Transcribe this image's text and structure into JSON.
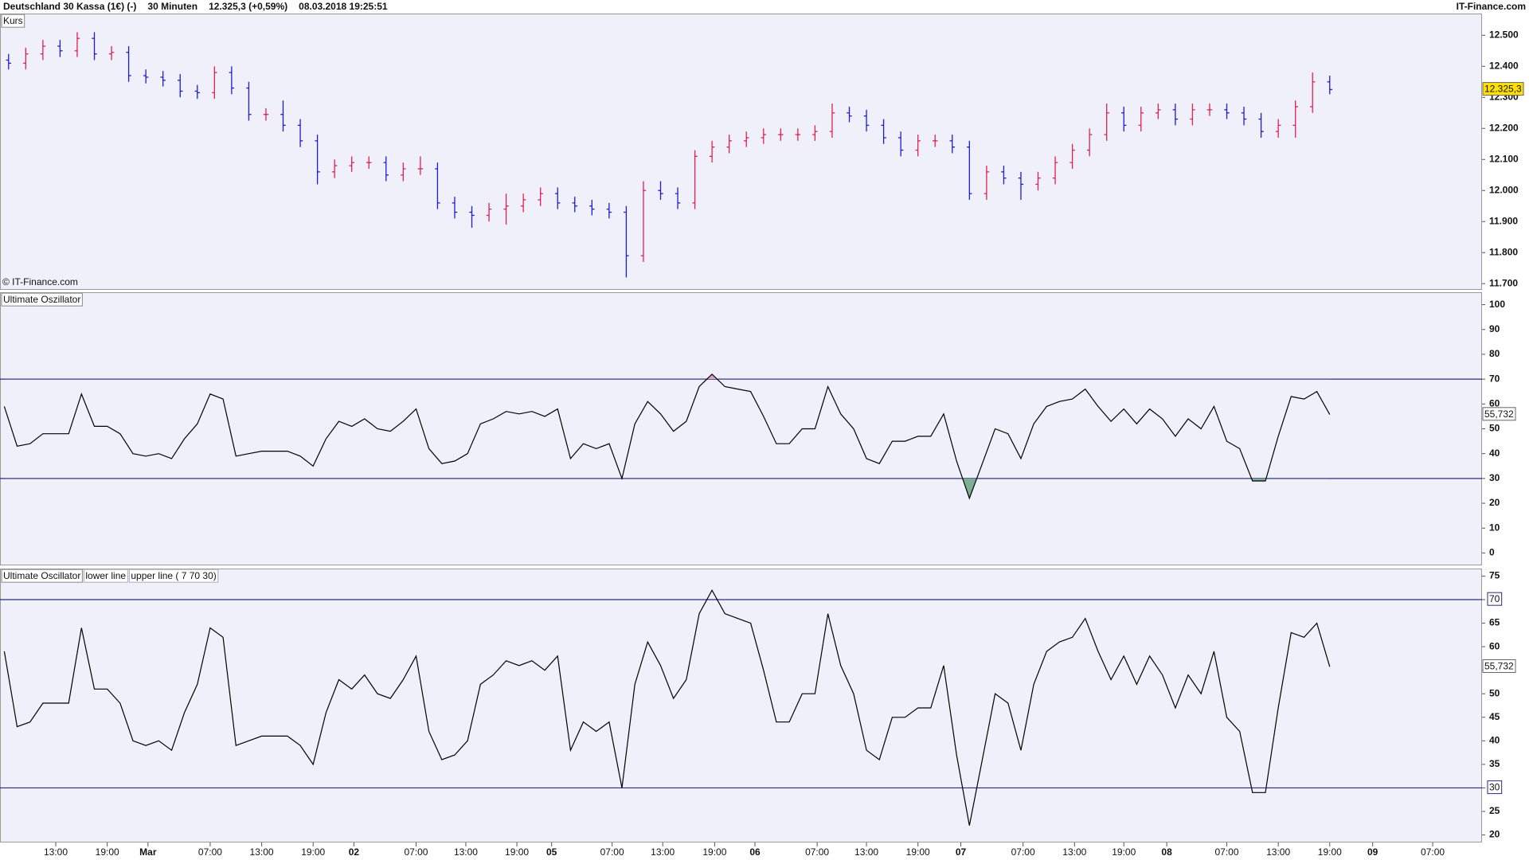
{
  "header": {
    "title": "Deutschland 30 Kassa (1€) (-)",
    "interval": "30 Minuten",
    "quote": "12.325,3 (+0,59%)",
    "timestamp": "08.03.2018 19:25:51",
    "brand": "IT-Finance.com"
  },
  "chart_data": [
    {
      "type": "ohlc",
      "title": "Kurs",
      "watermark": "© IT-Finance.com",
      "up_color": "#e0204f",
      "down_color": "#1c1cd0",
      "x": [
        2,
        6,
        10,
        14,
        18,
        22,
        26,
        30,
        34,
        38,
        42,
        46,
        50,
        54,
        58,
        62,
        66,
        70,
        74,
        78,
        82,
        86,
        90,
        94,
        98,
        102,
        106,
        110,
        114,
        118,
        122,
        126,
        130,
        134,
        138,
        142,
        146,
        150,
        154,
        158,
        162,
        166,
        170,
        174,
        178,
        182,
        186,
        190,
        194,
        198,
        202,
        206,
        210,
        214,
        218,
        222,
        226,
        230,
        234,
        238,
        242,
        246,
        250,
        254,
        258,
        262,
        266,
        270,
        274,
        278,
        282,
        286,
        290,
        294,
        298,
        302,
        306,
        310
      ],
      "open": [
        12420,
        12410,
        12440,
        12465,
        12450,
        12490,
        12440,
        12445,
        12370,
        12365,
        12355,
        12320,
        12315,
        12380,
        12330,
        12245,
        12245,
        12210,
        12160,
        12060,
        12080,
        12090,
        12090,
        12050,
        12070,
        12070,
        11960,
        11930,
        11920,
        11940,
        11950,
        11970,
        11990,
        11960,
        11950,
        11940,
        11930,
        11790,
        12000,
        11990,
        11960,
        12110,
        12140,
        12160,
        12170,
        12180,
        12180,
        12180,
        12190,
        12250,
        12240,
        12210,
        12170,
        12130,
        12160,
        12160,
        12140,
        11990,
        12060,
        12040,
        12020,
        12040,
        12090,
        12130,
        12180,
        12250,
        12210,
        12250,
        12260,
        12230,
        12260,
        12260,
        12250,
        12230,
        12190,
        12210,
        12270,
        12350
      ],
      "high": [
        12440,
        12460,
        12485,
        12485,
        12510,
        12510,
        12465,
        12465,
        12390,
        12385,
        12375,
        12340,
        12400,
        12400,
        12350,
        12265,
        12290,
        12230,
        12180,
        12100,
        12110,
        12110,
        12110,
        12090,
        12110,
        12090,
        11980,
        11950,
        11960,
        11990,
        11990,
        12010,
        12010,
        11980,
        11970,
        11960,
        11950,
        12030,
        12030,
        12010,
        12130,
        12160,
        12180,
        12190,
        12200,
        12200,
        12200,
        12210,
        12280,
        12270,
        12260,
        12230,
        12190,
        12180,
        12180,
        12180,
        12160,
        12080,
        12080,
        12060,
        12060,
        12110,
        12150,
        12200,
        12280,
        12270,
        12270,
        12280,
        12280,
        12280,
        12280,
        12280,
        12270,
        12250,
        12230,
        12290,
        12380,
        12370
      ],
      "low": [
        12390,
        12390,
        12420,
        12430,
        12430,
        12420,
        12420,
        12350,
        12345,
        12335,
        12300,
        12295,
        12295,
        12310,
        12225,
        12225,
        12190,
        12140,
        12020,
        12040,
        12060,
        12070,
        12030,
        12030,
        12050,
        11940,
        11910,
        11880,
        11900,
        11890,
        11930,
        11950,
        11940,
        11930,
        11920,
        11910,
        11720,
        11770,
        11970,
        11940,
        11940,
        12090,
        12120,
        12140,
        12150,
        12160,
        12160,
        12160,
        12170,
        12220,
        12190,
        12150,
        12110,
        12110,
        12140,
        12120,
        11970,
        11970,
        12020,
        11970,
        12000,
        12020,
        12070,
        12110,
        12160,
        12190,
        12190,
        12230,
        12210,
        12210,
        12240,
        12230,
        12210,
        12170,
        12170,
        12170,
        12250,
        12310
      ],
      "close": [
        12410,
        12440,
        12465,
        12450,
        12490,
        12440,
        12445,
        12370,
        12365,
        12355,
        12320,
        12315,
        12380,
        12330,
        12245,
        12245,
        12210,
        12160,
        12060,
        12080,
        12090,
        12090,
        12050,
        12070,
        12070,
        11960,
        11930,
        11920,
        11940,
        11950,
        11970,
        11990,
        11960,
        11950,
        11940,
        11930,
        11790,
        12000,
        11990,
        11960,
        12110,
        12140,
        12160,
        12170,
        12180,
        12180,
        12180,
        12190,
        12250,
        12240,
        12210,
        12170,
        12130,
        12160,
        12160,
        12140,
        11990,
        12060,
        12040,
        12020,
        12040,
        12090,
        12130,
        12180,
        12250,
        12210,
        12250,
        12260,
        12230,
        12260,
        12260,
        12250,
        12230,
        12190,
        12210,
        12270,
        12350,
        12325.3
      ],
      "current_value": 12325.3,
      "current_label": "12.325,3",
      "current_color": "#ffe000",
      "xlim": [
        0,
        345.5
      ],
      "ylim": [
        11680,
        12570
      ],
      "yticks": [
        {
          "value": 11700,
          "label": "11.700"
        },
        {
          "value": 11800,
          "label": "11.800"
        },
        {
          "value": 11900,
          "label": "11.900"
        },
        {
          "value": 12000,
          "label": "12.000"
        },
        {
          "value": 12100,
          "label": "12.100"
        },
        {
          "value": 12200,
          "label": "12.200"
        },
        {
          "value": 12300,
          "label": "12.300"
        },
        {
          "value": 12400,
          "label": "12.400"
        },
        {
          "value": 12500,
          "label": "12.500"
        }
      ]
    },
    {
      "type": "line",
      "title": "Ultimate Oszillator",
      "x": [
        1,
        4,
        7,
        10,
        13,
        16,
        19,
        22,
        25,
        28,
        31,
        34,
        37,
        40,
        43,
        46,
        49,
        52,
        55,
        58,
        61,
        64,
        67,
        70,
        73,
        76,
        79,
        82,
        85,
        88,
        91,
        94,
        97,
        100,
        103,
        106,
        109,
        112,
        115,
        118,
        121,
        124,
        127,
        130,
        133,
        136,
        139,
        142,
        145,
        148,
        151,
        154,
        157,
        160,
        163,
        166,
        169,
        172,
        175,
        178,
        181,
        184,
        187,
        190,
        193,
        196,
        199,
        202,
        205,
        208,
        211,
        214,
        217,
        220,
        223,
        226,
        229,
        232,
        235,
        238,
        241,
        244,
        247,
        250,
        253,
        256,
        259,
        262,
        265,
        268,
        271,
        274,
        277,
        280,
        283,
        286,
        289,
        292,
        295,
        298,
        301,
        304,
        307,
        310
      ],
      "series": [
        {
          "color": "#000000",
          "values": [
            59,
            43,
            44,
            48,
            48,
            48,
            64,
            51,
            51,
            48,
            40,
            39,
            40,
            38,
            46,
            52,
            64,
            62,
            39,
            40,
            41,
            41,
            41,
            39,
            35,
            46,
            53,
            51,
            54,
            50,
            49,
            53,
            58,
            42,
            36,
            37,
            40,
            52,
            54,
            57,
            56,
            57,
            55,
            58,
            38,
            44,
            42,
            44,
            30,
            52,
            61,
            56,
            49,
            53,
            67,
            72,
            67,
            66,
            65,
            55,
            44,
            44,
            50,
            50,
            67,
            56,
            50,
            38,
            36,
            45,
            45,
            47,
            47,
            56,
            37,
            22,
            36,
            50,
            48,
            38,
            52,
            59,
            61,
            62,
            66,
            59,
            53,
            58,
            52,
            58,
            54,
            47,
            54,
            50,
            59,
            45,
            42,
            29,
            29,
            47,
            63,
            62,
            65,
            55.732
          ]
        }
      ],
      "current_value": 55.732,
      "current_label": "55,732",
      "current_color": "#ffffff",
      "hlines": [
        30,
        70
      ],
      "hline_color": "#2a2a80",
      "fill_low_color": "#7fae92",
      "fill_high_color": "#d7a6c6",
      "xlim": [
        0,
        345.5
      ],
      "ylim": [
        -5,
        105
      ],
      "yticks": [
        0,
        10,
        20,
        30,
        40,
        50,
        60,
        70,
        80,
        90,
        100
      ]
    },
    {
      "type": "line",
      "title": "Ultimate Oscillator",
      "legend_items": [
        "lower line",
        "upper line ( 7 70 30)"
      ],
      "legend_color": "#2020b0",
      "x": [
        1,
        4,
        7,
        10,
        13,
        16,
        19,
        22,
        25,
        28,
        31,
        34,
        37,
        40,
        43,
        46,
        49,
        52,
        55,
        58,
        61,
        64,
        67,
        70,
        73,
        76,
        79,
        82,
        85,
        88,
        91,
        94,
        97,
        100,
        103,
        106,
        109,
        112,
        115,
        118,
        121,
        124,
        127,
        130,
        133,
        136,
        139,
        142,
        145,
        148,
        151,
        154,
        157,
        160,
        163,
        166,
        169,
        172,
        175,
        178,
        181,
        184,
        187,
        190,
        193,
        196,
        199,
        202,
        205,
        208,
        211,
        214,
        217,
        220,
        223,
        226,
        229,
        232,
        235,
        238,
        241,
        244,
        247,
        250,
        253,
        256,
        259,
        262,
        265,
        268,
        271,
        274,
        277,
        280,
        283,
        286,
        289,
        292,
        295,
        298,
        301,
        304,
        307,
        310
      ],
      "series": [
        {
          "color": "#000000",
          "values": [
            59,
            43,
            44,
            48,
            48,
            48,
            64,
            51,
            51,
            48,
            40,
            39,
            40,
            38,
            46,
            52,
            64,
            62,
            39,
            40,
            41,
            41,
            41,
            39,
            35,
            46,
            53,
            51,
            54,
            50,
            49,
            53,
            58,
            42,
            36,
            37,
            40,
            52,
            54,
            57,
            56,
            57,
            55,
            58,
            38,
            44,
            42,
            44,
            30,
            52,
            61,
            56,
            49,
            53,
            67,
            72,
            67,
            66,
            65,
            55,
            44,
            44,
            50,
            50,
            67,
            56,
            50,
            38,
            36,
            45,
            45,
            47,
            47,
            56,
            37,
            22,
            36,
            50,
            48,
            38,
            52,
            59,
            61,
            62,
            66,
            59,
            53,
            58,
            52,
            58,
            54,
            47,
            54,
            50,
            59,
            45,
            42,
            29,
            29,
            47,
            63,
            62,
            65,
            55.732
          ]
        }
      ],
      "current_value": 55.732,
      "current_label": "55,732",
      "current_color": "#ffffff",
      "hlines": [
        30,
        70
      ],
      "hline_color": "#2a2a80",
      "hline_labels": true,
      "xlim": [
        0,
        345.5
      ],
      "ylim": [
        18.4,
        76.6
      ],
      "yticks": [
        20,
        25,
        30,
        35,
        40,
        45,
        50,
        55,
        60,
        65,
        70,
        75
      ],
      "xticks": [
        {
          "value": 13,
          "label": "13:00"
        },
        {
          "value": 25,
          "label": "19:00"
        },
        {
          "value": 34.5,
          "label": "Mar"
        },
        {
          "value": 49,
          "label": "07:00"
        },
        {
          "value": 61,
          "label": "13:00"
        },
        {
          "value": 73,
          "label": "19:00"
        },
        {
          "value": 82.5,
          "label": "02"
        },
        {
          "value": 97,
          "label": "07:00"
        },
        {
          "value": 108.6,
          "label": "13:00"
        },
        {
          "value": 120.5,
          "label": "19:00"
        },
        {
          "value": 128.6,
          "label": "05"
        },
        {
          "value": 142.7,
          "label": "07:00"
        },
        {
          "value": 154.5,
          "label": "13:00"
        },
        {
          "value": 166.6,
          "label": "19:00"
        },
        {
          "value": 176,
          "label": "06"
        },
        {
          "value": 190.5,
          "label": "07:00"
        },
        {
          "value": 202,
          "label": "13:00"
        },
        {
          "value": 214,
          "label": "19:00"
        },
        {
          "value": 224,
          "label": "07"
        },
        {
          "value": 238.5,
          "label": "07:00"
        },
        {
          "value": 250.5,
          "label": "13:00"
        },
        {
          "value": 262,
          "label": "19:00"
        },
        {
          "value": 272,
          "label": "08"
        },
        {
          "value": 286,
          "label": "07:00"
        },
        {
          "value": 298,
          "label": "13:00"
        },
        {
          "value": 310,
          "label": "19:00"
        },
        {
          "value": 320,
          "label": "09"
        },
        {
          "value": 334,
          "label": "07:00"
        }
      ]
    }
  ]
}
